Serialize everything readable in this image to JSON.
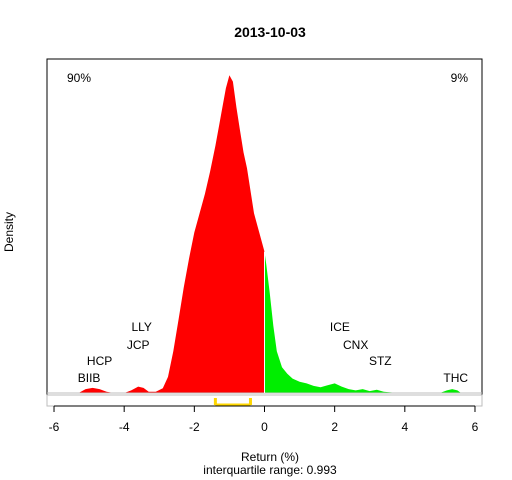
{
  "chart_data": {
    "type": "area",
    "title": "2013-10-03",
    "xlabel": "Return (%)",
    "subtitle": "interquartile range: 0.993",
    "ylabel": "Density",
    "xlim": [
      -6.2,
      6.2
    ],
    "x_ticks": [
      -6,
      -4,
      -2,
      0,
      2,
      4,
      6
    ],
    "pct_negative_label": "90%",
    "pct_positive_label": "9%",
    "colors": {
      "negative": "#ff0000",
      "positive": "#00ee00",
      "iqr": "#ffd700",
      "pct_negative": "#ff0000",
      "pct_positive": "#00aa00"
    },
    "iqr": [
      -1.4,
      -0.4
    ],
    "density_negative": {
      "x": [
        -5.3,
        -5.1,
        -4.9,
        -4.7,
        -4.5,
        -4.3,
        -4.0,
        -3.8,
        -3.6,
        -3.45,
        -3.3,
        -3.1,
        -2.9,
        -2.75,
        -2.6,
        -2.45,
        -2.3,
        -2.15,
        -2.0,
        -1.85,
        -1.7,
        -1.55,
        -1.4,
        -1.3,
        -1.2,
        -1.1,
        -1.0,
        -0.9,
        -0.8,
        -0.7,
        -0.6,
        -0.5,
        -0.4,
        -0.3,
        -0.2,
        -0.1,
        0.0
      ],
      "y": [
        0.0,
        0.012,
        0.016,
        0.012,
        0.004,
        0.0,
        0.0,
        0.008,
        0.02,
        0.016,
        0.004,
        0.004,
        0.015,
        0.05,
        0.13,
        0.23,
        0.33,
        0.42,
        0.5,
        0.56,
        0.62,
        0.69,
        0.77,
        0.83,
        0.89,
        0.95,
        0.99,
        0.97,
        0.89,
        0.82,
        0.75,
        0.7,
        0.63,
        0.56,
        0.52,
        0.48,
        0.44
      ]
    },
    "density_positive": {
      "x": [
        0.0,
        0.05,
        0.15,
        0.25,
        0.35,
        0.5,
        0.65,
        0.8,
        1.0,
        1.2,
        1.4,
        1.6,
        1.8,
        2.0,
        2.2,
        2.4,
        2.6,
        2.8,
        3.0,
        3.2,
        3.4,
        3.6,
        3.8,
        4.0,
        4.5,
        5.0,
        5.2,
        5.35,
        5.5,
        5.6
      ],
      "y": [
        0.44,
        0.4,
        0.31,
        0.21,
        0.13,
        0.08,
        0.06,
        0.045,
        0.035,
        0.03,
        0.022,
        0.018,
        0.024,
        0.03,
        0.02,
        0.012,
        0.008,
        0.012,
        0.006,
        0.01,
        0.004,
        0.002,
        0.0,
        0.0,
        0.0,
        0.0,
        0.008,
        0.012,
        0.008,
        0.0
      ]
    },
    "annotations": [
      {
        "text": "BIIB",
        "x": -5.0,
        "level": 0
      },
      {
        "text": "HCP",
        "x": -4.7,
        "level": 1
      },
      {
        "text": "JCP",
        "x": -3.6,
        "level": 2
      },
      {
        "text": "LLY",
        "x": -3.5,
        "level": 3
      },
      {
        "text": "ICE",
        "x": 2.15,
        "level": 3
      },
      {
        "text": "CNX",
        "x": 2.6,
        "level": 2
      },
      {
        "text": "STZ",
        "x": 3.3,
        "level": 1
      },
      {
        "text": "THC",
        "x": 5.45,
        "level": 0
      }
    ]
  }
}
